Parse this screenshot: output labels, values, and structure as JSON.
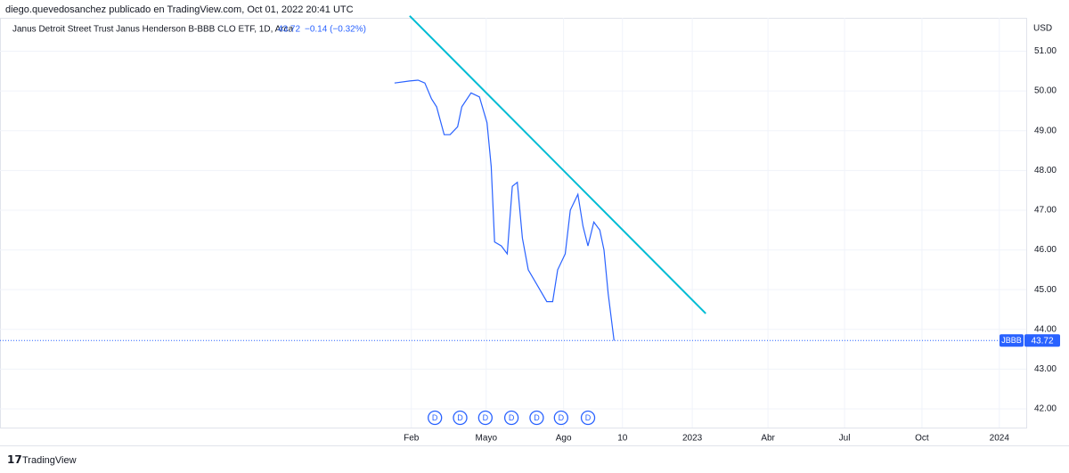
{
  "header": {
    "author_line": "diego.quevedosanchez publicado en TradingView.com, Oct 01, 2022 20:41 UTC"
  },
  "chart_data": {
    "type": "line",
    "title": "Janus Detroit Street Trust Janus Henderson B-BBB CLO ETF, 1D, Arca",
    "last_price": 43.72,
    "change_text": "−0.14 (−0.32%)",
    "symbol": "JBBB",
    "currency": "USD",
    "series": [
      {
        "color": "#2962ff",
        "x": [
          "2022-01-12",
          "2022-01-30",
          "2022-02-09",
          "2022-02-17",
          "2022-02-25",
          "2022-03-03",
          "2022-03-12",
          "2022-03-19",
          "2022-03-28",
          "2022-04-02",
          "2022-04-13",
          "2022-04-23",
          "2022-05-02",
          "2022-05-07",
          "2022-05-11",
          "2022-05-19",
          "2022-05-26",
          "2022-06-01",
          "2022-06-07",
          "2022-06-13",
          "2022-06-20",
          "2022-07-01",
          "2022-07-12",
          "2022-07-19",
          "2022-07-25",
          "2022-08-03",
          "2022-08-09",
          "2022-08-18",
          "2022-08-24",
          "2022-08-30",
          "2022-09-06",
          "2022-09-13",
          "2022-09-18",
          "2022-09-23",
          "2022-09-30"
        ],
        "values": [
          50.2,
          50.25,
          50.27,
          50.2,
          49.8,
          49.6,
          48.9,
          48.9,
          49.1,
          49.6,
          49.95,
          49.85,
          49.2,
          48.1,
          46.2,
          46.1,
          45.9,
          47.6,
          47.7,
          46.3,
          45.5,
          45.1,
          44.7,
          44.7,
          45.5,
          45.9,
          47.0,
          47.4,
          46.6,
          46.1,
          46.7,
          46.5,
          46.0,
          44.9,
          43.72
        ]
      }
    ],
    "trendline": {
      "color": "#00bcd4",
      "x": [
        "2022-01-30",
        "2023-01-17"
      ],
      "values": [
        51.89,
        44.4
      ]
    },
    "events": {
      "label": "D",
      "x": [
        "2022-03-01",
        "2022-03-31",
        "2022-04-30",
        "2022-05-31",
        "2022-06-30",
        "2022-07-29",
        "2022-08-30"
      ]
    },
    "xlim": [
      "2020-09-30",
      "2024-02-02"
    ],
    "xticks": [
      {
        "value": "2022-02-01",
        "label": "Feb"
      },
      {
        "value": "2022-05-01",
        "label": "Mayo"
      },
      {
        "value": "2022-08-01",
        "label": "Ago"
      },
      {
        "value": "2022-10-10",
        "label": "10"
      },
      {
        "value": "2023-01-01",
        "label": "2023"
      },
      {
        "value": "2023-04-01",
        "label": "Abr"
      },
      {
        "value": "2023-07-01",
        "label": "Jul"
      },
      {
        "value": "2023-10-01",
        "label": "Oct"
      },
      {
        "value": "2024-01-01",
        "label": "2024"
      }
    ],
    "ylim": [
      41.53,
      51.84
    ],
    "yticks": [
      {
        "value": 42,
        "label": "42.00"
      },
      {
        "value": 43,
        "label": "43.00"
      },
      {
        "value": 44,
        "label": "44.00"
      },
      {
        "value": 45,
        "label": "45.00"
      },
      {
        "value": 46,
        "label": "46.00"
      },
      {
        "value": 47,
        "label": "47.00"
      },
      {
        "value": 48,
        "label": "48.00"
      },
      {
        "value": 49,
        "label": "49.00"
      },
      {
        "value": 50,
        "label": "50.00"
      },
      {
        "value": 51,
        "label": "51.00"
      }
    ],
    "grid": true
  },
  "footer": {
    "brand": "TradingView"
  }
}
